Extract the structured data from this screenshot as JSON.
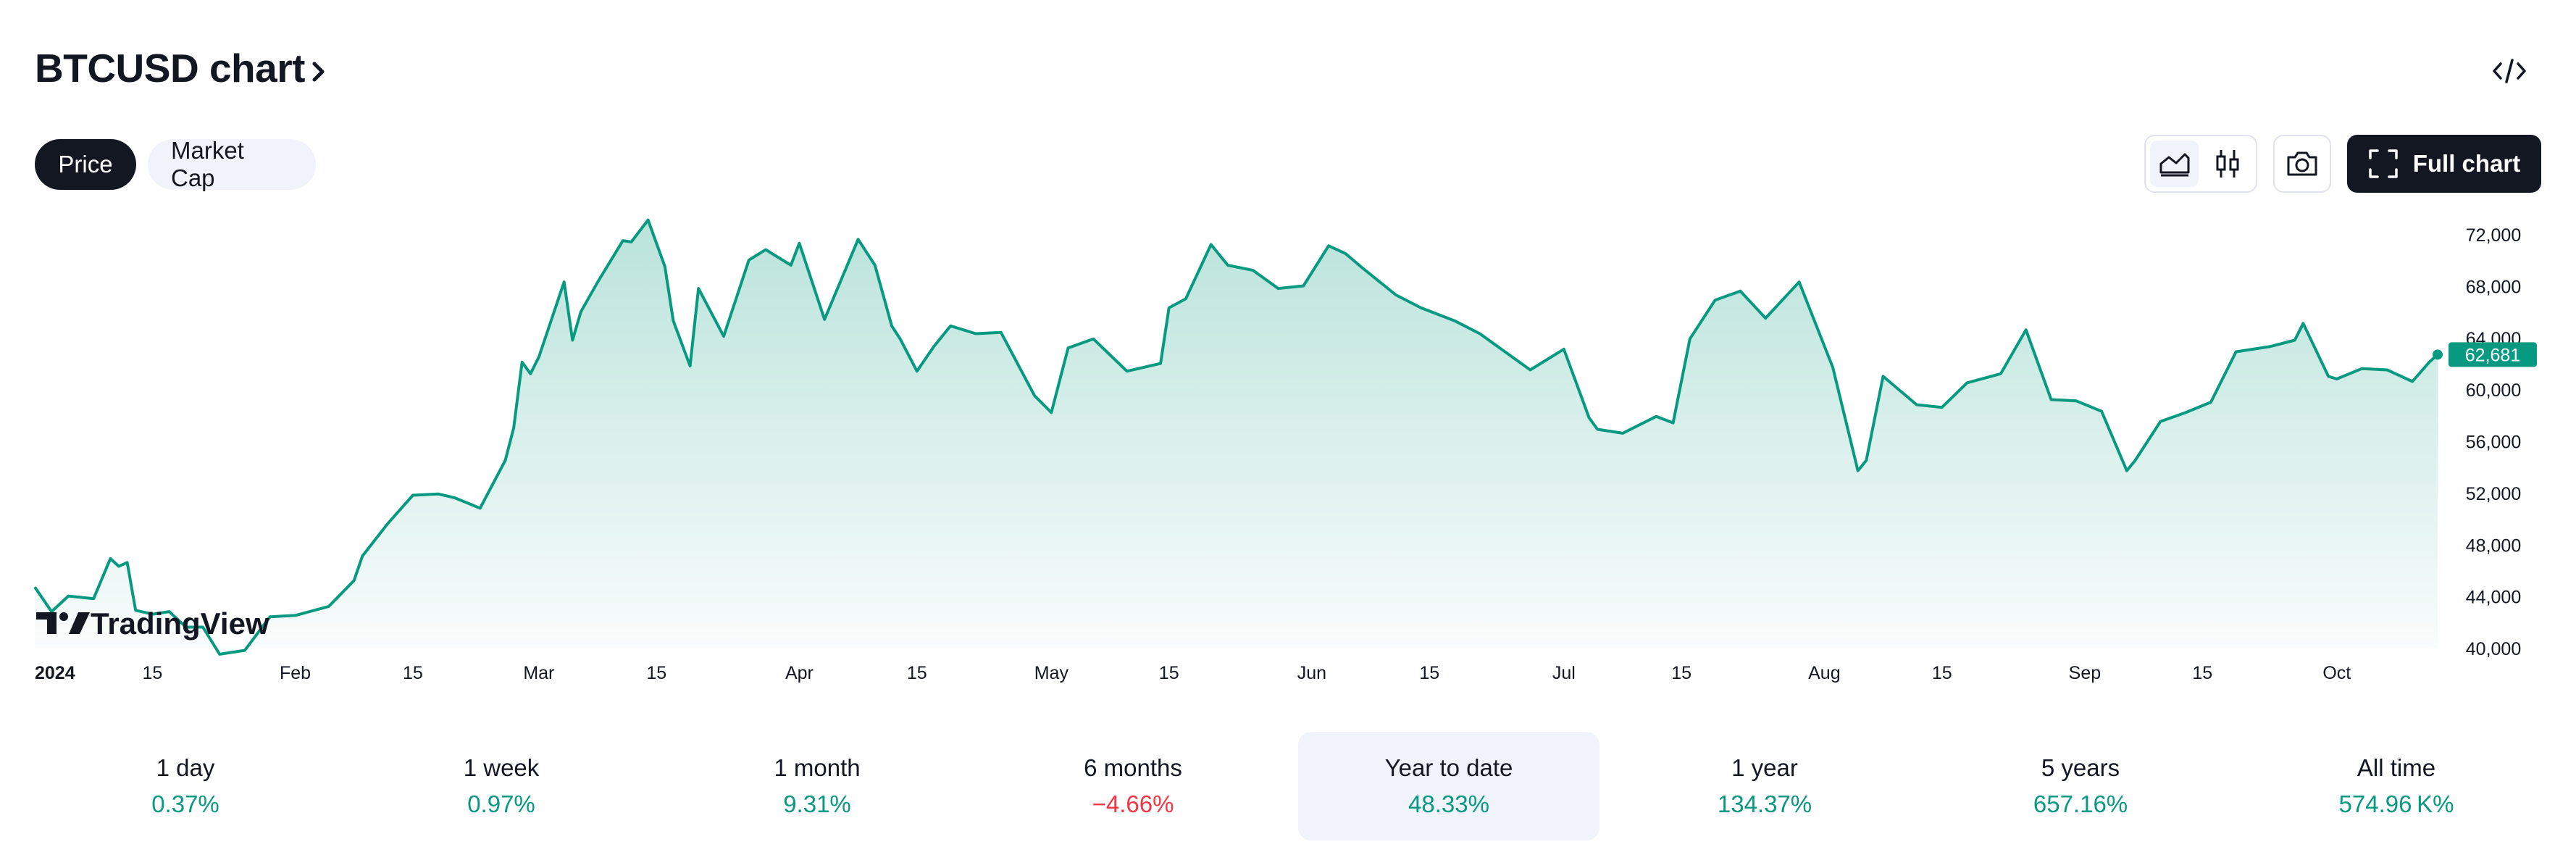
{
  "header": {
    "title": "BTCUSD chart"
  },
  "tabs": [
    {
      "label": "Price",
      "active": true
    },
    {
      "label": "Market Cap",
      "active": false
    }
  ],
  "toolbar": {
    "full_chart_label": "Full chart",
    "chart_types": [
      "area-chart-icon",
      "candles-icon"
    ],
    "selected_type": "area-chart-icon"
  },
  "colors": {
    "line": "#089981",
    "price_label_bg": "#089981",
    "negative": "#f23645",
    "dark": "#131722"
  },
  "chart_data": {
    "type": "area",
    "series": [
      {
        "name": "BTCUSD",
        "dates": [
          "2024-01-01",
          "2024-01-03",
          "2024-01-05",
          "2024-01-08",
          "2024-01-10",
          "2024-01-11",
          "2024-01-12",
          "2024-01-13",
          "2024-01-15",
          "2024-01-17",
          "2024-01-19",
          "2024-01-21",
          "2024-01-23",
          "2024-01-26",
          "2024-01-29",
          "2024-02-01",
          "2024-02-05",
          "2024-02-08",
          "2024-02-09",
          "2024-02-12",
          "2024-02-15",
          "2024-02-18",
          "2024-02-20",
          "2024-02-23",
          "2024-02-26",
          "2024-02-27",
          "2024-02-28",
          "2024-02-29",
          "2024-03-01",
          "2024-03-04",
          "2024-03-05",
          "2024-03-06",
          "2024-03-08",
          "2024-03-11",
          "2024-03-12",
          "2024-03-14",
          "2024-03-16",
          "2024-03-17",
          "2024-03-19",
          "2024-03-20",
          "2024-03-23",
          "2024-03-26",
          "2024-03-28",
          "2024-03-31",
          "2024-04-01",
          "2024-04-04",
          "2024-04-08",
          "2024-04-10",
          "2024-04-12",
          "2024-04-13",
          "2024-04-15",
          "2024-04-17",
          "2024-04-19",
          "2024-04-22",
          "2024-04-25",
          "2024-04-29",
          "2024-05-01",
          "2024-05-03",
          "2024-05-06",
          "2024-05-10",
          "2024-05-14",
          "2024-05-15",
          "2024-05-17",
          "2024-05-20",
          "2024-05-22",
          "2024-05-25",
          "2024-05-28",
          "2024-05-31",
          "2024-06-03",
          "2024-06-05",
          "2024-06-07",
          "2024-06-11",
          "2024-06-14",
          "2024-06-18",
          "2024-06-21",
          "2024-06-24",
          "2024-06-27",
          "2024-07-01",
          "2024-07-04",
          "2024-07-05",
          "2024-07-08",
          "2024-07-12",
          "2024-07-14",
          "2024-07-16",
          "2024-07-19",
          "2024-07-22",
          "2024-07-25",
          "2024-07-29",
          "2024-08-02",
          "2024-08-05",
          "2024-08-06",
          "2024-08-08",
          "2024-08-12",
          "2024-08-15",
          "2024-08-18",
          "2024-08-22",
          "2024-08-25",
          "2024-08-28",
          "2024-08-31",
          "2024-09-03",
          "2024-09-06",
          "2024-09-07",
          "2024-09-10",
          "2024-09-13",
          "2024-09-16",
          "2024-09-19",
          "2024-09-23",
          "2024-09-26",
          "2024-09-27",
          "2024-09-30",
          "2024-10-01",
          "2024-10-04",
          "2024-10-07",
          "2024-10-10",
          "2024-10-12",
          "2024-10-13"
        ],
        "values": [
          44700,
          42800,
          44000,
          43800,
          46900,
          46300,
          46600,
          42900,
          42600,
          42800,
          41600,
          41600,
          39500,
          39800,
          42400,
          42500,
          43200,
          45200,
          47100,
          49600,
          51800,
          51900,
          51600,
          50800,
          54500,
          57000,
          62100,
          61200,
          62500,
          68300,
          63800,
          66000,
          68300,
          71500,
          71400,
          73100,
          69500,
          65300,
          61800,
          67800,
          64100,
          70000,
          70800,
          69600,
          71300,
          65400,
          71600,
          69600,
          64900,
          63900,
          61400,
          63300,
          64900,
          64300,
          64400,
          59500,
          58200,
          63200,
          63900,
          61400,
          62000,
          66300,
          67000,
          71200,
          69600,
          69200,
          67800,
          68000,
          71100,
          70500,
          69400,
          67300,
          66300,
          65300,
          64300,
          62900,
          61500,
          63100,
          57800,
          56900,
          56600,
          57900,
          57400,
          63900,
          66900,
          67600,
          65500,
          68300,
          61700,
          53700,
          54500,
          61000,
          58800,
          58600,
          60500,
          61200,
          64600,
          59200,
          59100,
          58300,
          53700,
          54500,
          57500,
          58200,
          59000,
          62900,
          63300,
          63800,
          65100,
          61000,
          60800,
          61600,
          61500,
          60600,
          62100,
          62681
        ]
      }
    ],
    "last_value": "62,681",
    "x_ticks": [
      "2024",
      "15",
      "Feb",
      "15",
      "Mar",
      "15",
      "Apr",
      "15",
      "May",
      "15",
      "Jun",
      "15",
      "Jul",
      "15",
      "Aug",
      "15",
      "Sep",
      "15",
      "Oct"
    ],
    "y_ticks": [
      "72,000",
      "68,000",
      "64,000",
      "60,000",
      "56,000",
      "52,000",
      "48,000",
      "44,000",
      "40,000"
    ],
    "ylim": [
      40000,
      73300
    ],
    "xlim": [
      "2024-01-01",
      "2024-10-13"
    ],
    "grid": false,
    "watermark": "TradingView"
  },
  "performance": [
    {
      "label": "1 day",
      "value": "0.37%",
      "direction": "up",
      "selected": false
    },
    {
      "label": "1 week",
      "value": "0.97%",
      "direction": "up",
      "selected": false
    },
    {
      "label": "1 month",
      "value": "9.31%",
      "direction": "up",
      "selected": false
    },
    {
      "label": "6 months",
      "value": "−4.66%",
      "direction": "down",
      "selected": false
    },
    {
      "label": "Year to date",
      "value": "48.33%",
      "direction": "up",
      "selected": true
    },
    {
      "label": "1 year",
      "value": "134.37%",
      "direction": "up",
      "selected": false
    },
    {
      "label": "5 years",
      "value": "657.16%",
      "direction": "up",
      "selected": false
    },
    {
      "label": "All time",
      "value": "574.96 K%",
      "direction": "up",
      "selected": false
    }
  ]
}
